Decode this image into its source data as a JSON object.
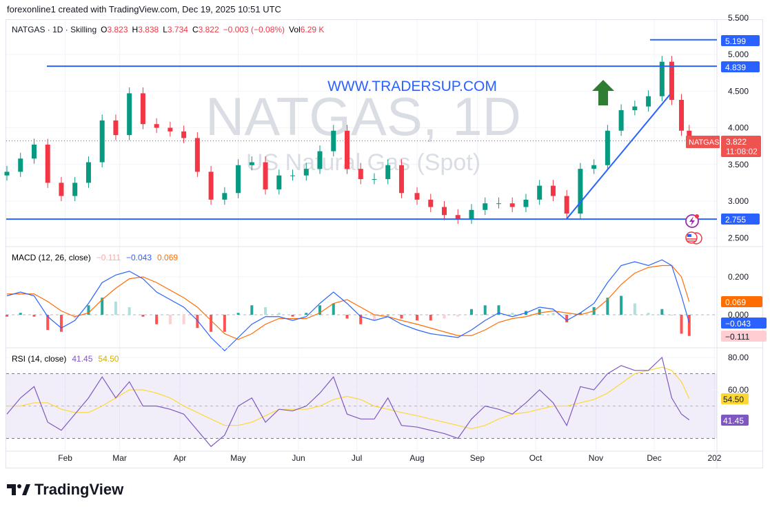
{
  "caption": "forexonline1 created with TradingView.com, Dec 19, 2025 10:51 UTC",
  "legend": {
    "symbol": "NATGAS · 1D · Skilling",
    "open_label": "O",
    "open": "3.823",
    "high_label": "H",
    "high": "3.838",
    "low_label": "L",
    "low": "3.734",
    "close_label": "C",
    "close": "3.822",
    "change": "−0.003 (−0.08%)",
    "vol_label": "Vol",
    "vol": "6.29 K"
  },
  "watermark": {
    "title": "NATGAS, 1D",
    "subtitle": "US Natural Gas (Spot)"
  },
  "annotation_text": "WWW.TRADERSUP.COM",
  "price_labels": {
    "symbol_tag": "NATGAS",
    "last": "3.822",
    "countdown": "11:08:02",
    "top": "5.199",
    "resistance": "4.839",
    "support": "2.755"
  },
  "macd_legend": {
    "title": "MACD (12, 26, close)",
    "hist": "−0.111",
    "macd": "−0.043",
    "signal": "0.069"
  },
  "rsi_legend": {
    "title": "RSI (14, close)",
    "rsi": "41.45",
    "ma": "54.50"
  },
  "footer_brand": "TradingView",
  "colors": {
    "up": "#089981",
    "down": "#f23645",
    "lines": "#2962ff",
    "macd": "#2962ff",
    "signal": "#ff6d00",
    "rsi": "#7e57c2",
    "rsi_ma": "#fdd835",
    "arrow": "#2e7d32"
  },
  "icons": [
    "lightning-event-icon",
    "us-flag-economic-event-icon",
    "tradingview-logo-icon",
    "up-arrow-icon"
  ],
  "chart_data": [
    {
      "type": "candlestick",
      "title": "NATGAS, 1D",
      "y_ticks": [
        "5.500",
        "5.000",
        "4.500",
        "4.000",
        "3.500",
        "3.000",
        "2.500"
      ],
      "ylim": [
        2.4,
        5.5
      ],
      "x_ticks": [
        "Feb",
        "Mar",
        "Apr",
        "May",
        "Jun",
        "Jul",
        "Aug",
        "Sep",
        "Oct",
        "Nov",
        "Dec",
        "202"
      ],
      "horizontal_lines": [
        5.199,
        4.839,
        2.755
      ],
      "trendline": [
        {
          "date": "2025-10-17",
          "price": 2.76
        },
        {
          "date": "2025-12-09",
          "price": 4.45
        }
      ],
      "dates": [
        "2025-01-02",
        "2025-01-09",
        "2025-01-16",
        "2025-01-23",
        "2025-01-30",
        "2025-02-06",
        "2025-02-13",
        "2025-02-20",
        "2025-02-27",
        "2025-03-06",
        "2025-03-13",
        "2025-03-20",
        "2025-03-27",
        "2025-04-03",
        "2025-04-10",
        "2025-04-17",
        "2025-04-24",
        "2025-05-01",
        "2025-05-08",
        "2025-05-15",
        "2025-05-22",
        "2025-05-29",
        "2025-06-05",
        "2025-06-12",
        "2025-06-19",
        "2025-06-26",
        "2025-07-03",
        "2025-07-10",
        "2025-07-17",
        "2025-07-24",
        "2025-08-01",
        "2025-08-08",
        "2025-08-15",
        "2025-08-22",
        "2025-08-29",
        "2025-09-05",
        "2025-09-12",
        "2025-09-19",
        "2025-09-26",
        "2025-10-03",
        "2025-10-10",
        "2025-10-17",
        "2025-10-24",
        "2025-10-31",
        "2025-11-07",
        "2025-11-14",
        "2025-11-21",
        "2025-11-28",
        "2025-12-05",
        "2025-12-10",
        "2025-12-15",
        "2025-12-19"
      ],
      "close": [
        3.4,
        3.58,
        3.77,
        3.25,
        3.07,
        3.25,
        3.53,
        4.1,
        3.9,
        4.47,
        4.05,
        4.0,
        3.95,
        3.86,
        3.4,
        3.02,
        3.11,
        3.49,
        3.53,
        3.16,
        3.35,
        3.35,
        3.44,
        3.68,
        3.96,
        3.44,
        3.3,
        3.3,
        3.49,
        3.11,
        3.02,
        2.92,
        2.81,
        2.76,
        2.88,
        2.97,
        2.97,
        2.92,
        3.02,
        3.21,
        3.07,
        2.83,
        3.44,
        3.49,
        3.96,
        4.24,
        4.29,
        4.43,
        4.9,
        4.38,
        3.96,
        3.822
      ]
    },
    {
      "type": "line",
      "title": "MACD (12, 26, close)",
      "y_ticks": [
        "0.200",
        "0.000"
      ],
      "ylim": [
        -0.2,
        0.38
      ],
      "series": [
        {
          "name": "MACD",
          "values": [
            0.1,
            0.12,
            0.1,
            -0.01,
            -0.07,
            -0.03,
            0.06,
            0.17,
            0.21,
            0.23,
            0.19,
            0.12,
            0.08,
            0.04,
            -0.03,
            -0.12,
            -0.19,
            -0.12,
            -0.05,
            -0.01,
            -0.01,
            -0.03,
            -0.01,
            0.06,
            0.12,
            0.06,
            -0.01,
            -0.03,
            -0.01,
            -0.05,
            -0.08,
            -0.1,
            -0.11,
            -0.12,
            -0.08,
            -0.03,
            0.01,
            -0.01,
            0.01,
            0.04,
            0.03,
            -0.03,
            0.01,
            0.06,
            0.17,
            0.26,
            0.28,
            0.26,
            0.29,
            0.26,
            0.1,
            -0.043
          ]
        },
        {
          "name": "Signal",
          "values": [
            0.11,
            0.11,
            0.11,
            0.07,
            0.02,
            -0.01,
            0.01,
            0.08,
            0.14,
            0.19,
            0.2,
            0.17,
            0.13,
            0.09,
            0.04,
            -0.03,
            -0.1,
            -0.13,
            -0.1,
            -0.05,
            -0.02,
            -0.02,
            -0.02,
            0.01,
            0.06,
            0.08,
            0.04,
            0.0,
            -0.01,
            -0.03,
            -0.05,
            -0.07,
            -0.09,
            -0.11,
            -0.11,
            -0.08,
            -0.04,
            -0.02,
            -0.01,
            0.01,
            0.02,
            0.01,
            0.0,
            0.02,
            0.08,
            0.16,
            0.22,
            0.25,
            0.26,
            0.26,
            0.2,
            0.069
          ]
        }
      ]
    },
    {
      "type": "line",
      "title": "RSI (14, close)",
      "y_ticks": [
        "80.00",
        "60.00"
      ],
      "ylim": [
        20,
        85
      ],
      "bands": [
        30,
        50,
        70
      ],
      "series": [
        {
          "name": "RSI",
          "values": [
            45,
            55,
            62,
            40,
            35,
            45,
            55,
            68,
            55,
            65,
            50,
            50,
            48,
            45,
            35,
            25,
            32,
            50,
            55,
            40,
            48,
            47,
            50,
            58,
            68,
            45,
            42,
            42,
            55,
            38,
            37,
            35,
            33,
            30,
            42,
            50,
            48,
            45,
            52,
            60,
            52,
            38,
            62,
            60,
            70,
            75,
            72,
            72,
            80,
            55,
            45,
            41.45
          ]
        },
        {
          "name": "RSI MA",
          "values": [
            50,
            50,
            52,
            52,
            48,
            46,
            46,
            50,
            55,
            60,
            60,
            58,
            55,
            50,
            46,
            42,
            38,
            38,
            40,
            44,
            48,
            48,
            48,
            50,
            54,
            56,
            54,
            50,
            48,
            46,
            44,
            42,
            40,
            38,
            36,
            38,
            42,
            45,
            46,
            48,
            50,
            50,
            52,
            54,
            58,
            64,
            70,
            72,
            74,
            72,
            65,
            54.5
          ]
        }
      ]
    }
  ]
}
